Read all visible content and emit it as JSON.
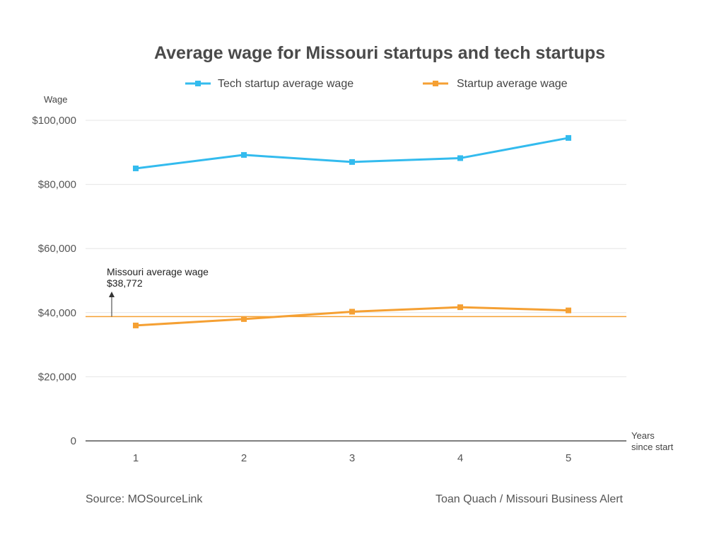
{
  "chart_data": {
    "type": "line",
    "title": "Average wage for Missouri startups and tech startups",
    "ylabel": "Wage",
    "xlabel": "Years since start",
    "xlabel_lines": [
      "Years",
      "since start"
    ],
    "ylim": [
      0,
      100000
    ],
    "y_ticks": [
      0,
      20000,
      40000,
      60000,
      80000,
      100000
    ],
    "y_tick_labels": [
      "0",
      "$20,000",
      "$40,000",
      "$60,000",
      "$80,000",
      "$100,000"
    ],
    "x": [
      1,
      2,
      3,
      4,
      5
    ],
    "x_tick_labels": [
      "1",
      "2",
      "3",
      "4",
      "5"
    ],
    "grid": true,
    "legend_position": "top",
    "series": [
      {
        "name": "Tech startup average wage",
        "color": "#33bbee",
        "values": [
          85000,
          89200,
          87000,
          88200,
          94500
        ]
      },
      {
        "name": "Startup average wage",
        "color": "#f5a033",
        "values": [
          36000,
          38000,
          40300,
          41700,
          40700
        ]
      }
    ],
    "reference_line": {
      "value": 38772,
      "color": "#f5a033",
      "label_lines": [
        "Missouri average wage",
        "$38,772"
      ]
    }
  },
  "footer": {
    "source": "Source: MOSourceLink",
    "credit": "Toan Quach / Missouri Business Alert"
  }
}
